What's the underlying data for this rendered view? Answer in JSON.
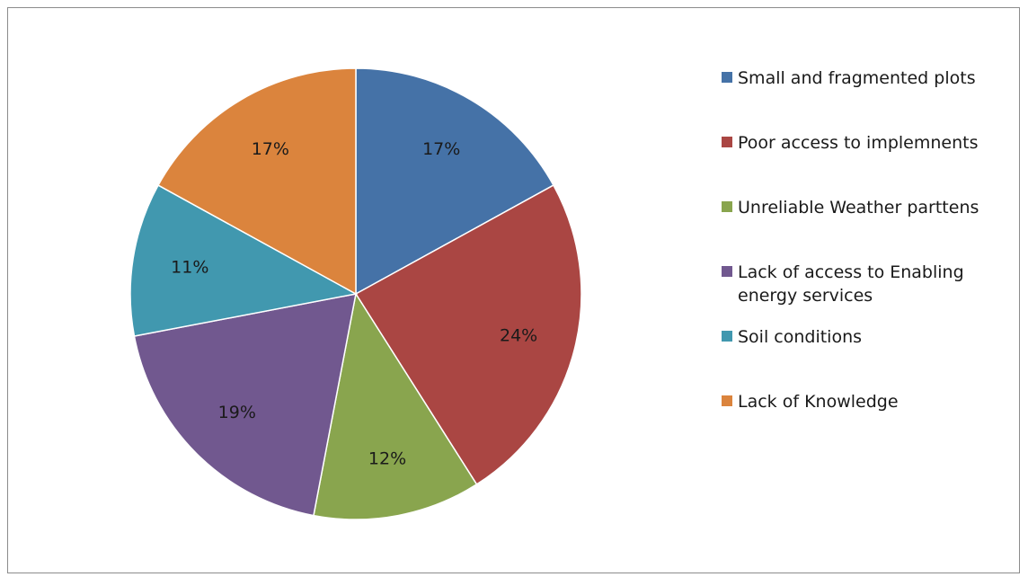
{
  "chart_data": {
    "type": "pie",
    "title": "",
    "slices": [
      {
        "label": "Small and fragmented plots",
        "value": 17,
        "value_label": "17%",
        "color": "#4572A7"
      },
      {
        "label": "Poor access to implemnents",
        "value": 24,
        "value_label": "24%",
        "color": "#AA4643"
      },
      {
        "label": "Unreliable Weather parttens",
        "value": 12,
        "value_label": "12%",
        "color": "#89A54E"
      },
      {
        "label": "Lack of access to Enabling energy services",
        "value": 19,
        "value_label": "19%",
        "color": "#71588F"
      },
      {
        "label": "Soil conditions",
        "value": 11,
        "value_label": "11%",
        "color": "#4198AF"
      },
      {
        "label": "Lack of Knowledge",
        "value": 17,
        "value_label": "17%",
        "color": "#DB843D"
      }
    ],
    "legend_position": "right",
    "start_angle": "top",
    "direction": "clockwise"
  }
}
